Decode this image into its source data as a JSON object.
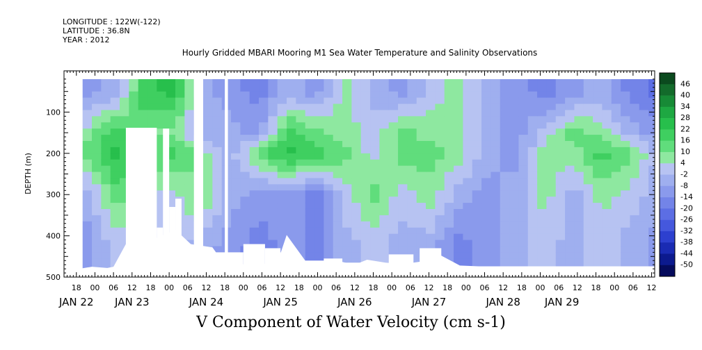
{
  "header": {
    "longitude": "LONGITUDE : 122W(-122)",
    "latitude": "LATITUDE : 36.8N",
    "year": "YEAR : 2012"
  },
  "chart_data": {
    "type": "heatmap",
    "title": "Hourly Gridded MBARI Mooring M1 Sea Water Temperature and Salinity Observations",
    "subtitle": "V Component of Water Velocity (cm s-1)",
    "ylabel": "DEPTH (m)",
    "xlabel": "",
    "x_range_hours": [
      -10,
      181
    ],
    "ylim": [
      500,
      0
    ],
    "y_ticks": [
      100,
      200,
      300,
      400,
      500
    ],
    "hour_ticks": [
      "18",
      "00",
      "06",
      "12",
      "18",
      "00",
      "06",
      "12",
      "18",
      "00",
      "06",
      "12",
      "18",
      "00",
      "06",
      "12",
      "18",
      "00",
      "06",
      "12",
      "18",
      "00",
      "06",
      "12",
      "18",
      "00",
      "06",
      "12",
      "18",
      "00",
      "06",
      "12"
    ],
    "date_labels": [
      {
        "label": "JAN 22",
        "hour": -6
      },
      {
        "label": "JAN 23",
        "hour": 12
      },
      {
        "label": "JAN 24",
        "hour": 36
      },
      {
        "label": "JAN 25",
        "hour": 60
      },
      {
        "label": "JAN 26",
        "hour": 84
      },
      {
        "label": "JAN 27",
        "hour": 108
      },
      {
        "label": "JAN 28",
        "hour": 132
      },
      {
        "label": "JAN 29",
        "hour": 151
      }
    ],
    "colorbar_levels": [
      "46",
      "40",
      "34",
      "28",
      "22",
      "16",
      "10",
      "4",
      "-2",
      "-8",
      "-14",
      "-20",
      "-26",
      "-32",
      "-38",
      "-44",
      "-50"
    ],
    "colorbar_colors": [
      "#0b4a1e",
      "#136b2b",
      "#178a36",
      "#1ea842",
      "#27bf4c",
      "#3fcf60",
      "#60dd7c",
      "#8ee8a0",
      "#b7c3f2",
      "#9fafef",
      "#8a9aec",
      "#7384e8",
      "#5c6ee4",
      "#4558dd",
      "#2d40cf",
      "#1a2bb3",
      "#0c1a8e",
      "#050b5c"
    ],
    "data_gaps_hours": [
      [
        32,
        35
      ],
      [
        42,
        43
      ]
    ],
    "velocity_samples": [
      {
        "depth": 50,
        "values": [
          -14,
          -8,
          16,
          22,
          -8,
          -14,
          -20,
          -8,
          -14,
          4,
          -8,
          -14,
          -2,
          4,
          -8,
          -14,
          -20,
          -14,
          -8,
          -20,
          -26
        ]
      },
      {
        "depth": 150,
        "values": [
          4,
          16,
          10,
          4,
          -8,
          -8,
          -14,
          16,
          10,
          4,
          -2,
          10,
          4,
          4,
          -8,
          -14,
          -2,
          10,
          4,
          -8,
          -14
        ]
      },
      {
        "depth": 200,
        "values": [
          10,
          22,
          10,
          16,
          4,
          -8,
          10,
          22,
          16,
          10,
          -2,
          10,
          10,
          4,
          -8,
          -14,
          4,
          4,
          16,
          10,
          -8
        ]
      },
      {
        "depth": 300,
        "values": [
          -8,
          10,
          4,
          -2,
          10,
          -8,
          -14,
          -14,
          -20,
          -2,
          10,
          -2,
          4,
          -8,
          -14,
          -8,
          4,
          -8,
          4,
          -2,
          -8
        ]
      },
      {
        "depth": 420,
        "values": [
          -14,
          -2,
          -8,
          -2,
          -8,
          -14,
          -20,
          -14,
          -20,
          -8,
          -2,
          -8,
          -8,
          -20,
          -14,
          -8,
          -2,
          -8,
          -2,
          -8,
          -14
        ]
      }
    ]
  }
}
